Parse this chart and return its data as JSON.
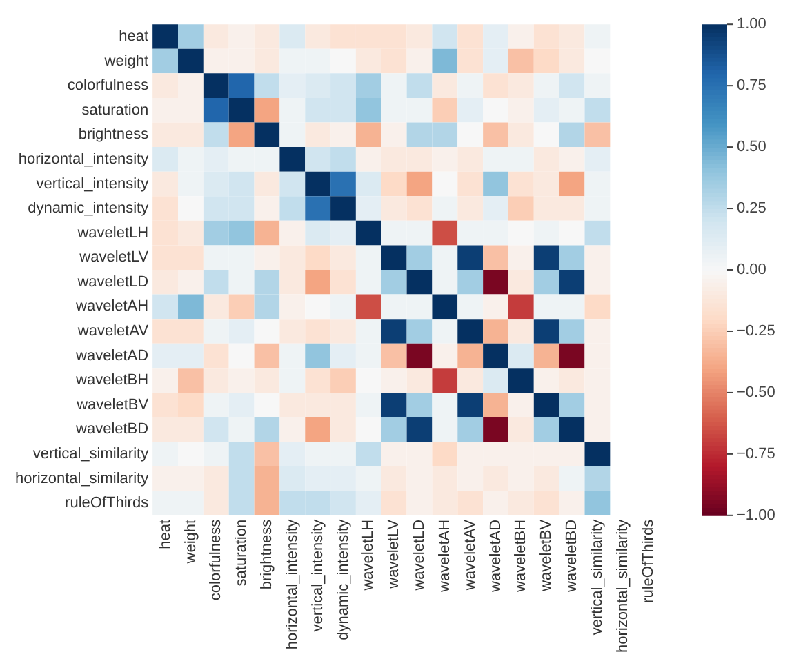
{
  "chart_data": {
    "type": "heatmap",
    "categories": [
      "heat",
      "weight",
      "colorfulness",
      "saturation",
      "brightness",
      "horizontal_intensity",
      "vertical_intensity",
      "dynamic_intensity",
      "waveletLH",
      "waveletLV",
      "waveletLD",
      "waveletAH",
      "waveletAV",
      "waveletAD",
      "waveletBH",
      "waveletBV",
      "waveletBD",
      "vertical_similarity",
      "horizontal_similarity",
      "ruleOfThirds"
    ],
    "y_categories": [
      "heat",
      "weight",
      "colorfulness",
      "saturation",
      "brightness",
      "horizontal_intensity",
      "vertical_intensity",
      "dynamic_intensity",
      "waveletLH",
      "waveletLV",
      "waveletLD",
      "waveletAH",
      "waveletAV",
      "waveletAD",
      "waveletBH",
      "waveletBV",
      "waveletBD",
      "vertical_similarity",
      "horizontal_similarity",
      "ruleOfThirds"
    ],
    "cells": [
      [
        1,
        0.35,
        -0.1,
        -0.05,
        -0.1,
        0.15,
        -0.1,
        -0.15,
        -0.15,
        -0.15,
        -0.1,
        0.2,
        -0.15,
        0.1,
        -0.05,
        -0.15,
        -0.1,
        0.05,
        null,
        null
      ],
      [
        0.35,
        1,
        -0.05,
        -0.05,
        -0.1,
        0.05,
        0.05,
        0,
        -0.1,
        -0.15,
        -0.05,
        0.45,
        -0.15,
        0.1,
        -0.3,
        -0.2,
        -0.1,
        0,
        null,
        null
      ],
      [
        -0.1,
        -0.05,
        1,
        0.8,
        0.25,
        0.1,
        0.15,
        0.2,
        0.35,
        0.05,
        0.25,
        -0.1,
        0.05,
        -0.15,
        -0.1,
        0.05,
        0.2,
        0.05,
        null,
        null
      ],
      [
        -0.05,
        -0.05,
        0.8,
        1,
        -0.4,
        0.05,
        0.2,
        0.2,
        0.4,
        0.05,
        0.05,
        -0.25,
        0.1,
        0,
        -0.05,
        0.1,
        0.05,
        0.25,
        null,
        null
      ],
      [
        -0.1,
        -0.1,
        0.25,
        -0.4,
        1,
        0.05,
        -0.1,
        -0.05,
        -0.35,
        -0.05,
        0.3,
        0.3,
        0,
        -0.3,
        -0.1,
        0,
        0.3,
        -0.3,
        null,
        null
      ],
      [
        0.15,
        0.05,
        0.1,
        0.05,
        0.05,
        1,
        0.2,
        0.25,
        -0.05,
        -0.1,
        -0.1,
        -0.05,
        -0.1,
        0.05,
        0.05,
        -0.1,
        -0.05,
        0.1,
        null,
        null
      ],
      [
        -0.1,
        0.05,
        0.15,
        0.2,
        -0.1,
        0.2,
        1,
        0.75,
        0.15,
        -0.2,
        -0.4,
        0,
        -0.15,
        0.4,
        -0.15,
        -0.1,
        -0.4,
        0.05,
        null,
        null
      ],
      [
        -0.15,
        0,
        0.2,
        0.2,
        -0.05,
        0.25,
        0.75,
        1,
        0.1,
        -0.1,
        -0.15,
        0.05,
        -0.1,
        0.1,
        -0.25,
        -0.1,
        -0.1,
        0.05,
        null,
        null
      ],
      [
        -0.15,
        -0.1,
        0.35,
        0.4,
        -0.35,
        -0.05,
        0.15,
        0.1,
        1,
        0.05,
        0.05,
        -0.65,
        0.05,
        0.05,
        0,
        0.05,
        0,
        0.25,
        null,
        null
      ],
      [
        -0.15,
        -0.15,
        0.05,
        0.05,
        -0.05,
        -0.1,
        -0.2,
        -0.1,
        0.05,
        1,
        0.35,
        0.05,
        0.95,
        -0.3,
        -0.05,
        0.95,
        0.35,
        -0.05,
        null,
        null
      ],
      [
        -0.1,
        -0.05,
        0.25,
        0.05,
        0.3,
        -0.1,
        -0.4,
        -0.15,
        0.05,
        0.35,
        1,
        0.05,
        0.35,
        -0.95,
        -0.1,
        0.35,
        0.95,
        -0.05,
        null,
        null
      ],
      [
        0.2,
        0.45,
        -0.1,
        -0.25,
        0.3,
        -0.05,
        0,
        0.05,
        -0.65,
        0.05,
        0.05,
        1,
        0.05,
        -0.05,
        -0.7,
        0.05,
        0.05,
        -0.2,
        null,
        null
      ],
      [
        -0.15,
        -0.15,
        0.05,
        0.1,
        0,
        -0.1,
        -0.15,
        -0.1,
        0.05,
        0.95,
        0.35,
        0.05,
        1,
        -0.35,
        -0.1,
        0.95,
        0.35,
        -0.05,
        null,
        null
      ],
      [
        0.1,
        0.1,
        -0.15,
        0,
        -0.3,
        0.05,
        0.4,
        0.1,
        0.05,
        -0.3,
        -0.95,
        -0.05,
        -0.35,
        1,
        0.15,
        -0.35,
        -0.95,
        -0.05,
        null,
        null
      ],
      [
        -0.05,
        -0.3,
        -0.1,
        -0.05,
        -0.1,
        0.05,
        -0.15,
        -0.25,
        0,
        -0.05,
        -0.1,
        -0.7,
        -0.1,
        0.15,
        1,
        -0.05,
        -0.1,
        -0.05,
        null,
        null
      ],
      [
        -0.15,
        -0.2,
        0.05,
        0.1,
        0,
        -0.1,
        -0.1,
        -0.1,
        0.05,
        0.95,
        0.35,
        0.05,
        0.95,
        -0.35,
        -0.05,
        1,
        0.35,
        -0.05,
        null,
        null
      ],
      [
        -0.1,
        -0.1,
        0.2,
        0.05,
        0.3,
        -0.05,
        -0.4,
        -0.1,
        0,
        0.35,
        0.95,
        0.05,
        0.35,
        -0.95,
        -0.1,
        0.35,
        1,
        -0.05,
        null,
        null
      ],
      [
        0.05,
        0,
        0.05,
        0.25,
        -0.3,
        0.1,
        0.05,
        0.05,
        0.25,
        -0.05,
        -0.05,
        -0.2,
        -0.05,
        -0.05,
        -0.05,
        -0.05,
        -0.05,
        1,
        null,
        null
      ],
      [
        -0.05,
        -0.05,
        -0.1,
        0.25,
        -0.35,
        0.15,
        0.1,
        0.1,
        0.05,
        -0.1,
        -0.05,
        -0.1,
        -0.05,
        -0.1,
        -0.05,
        -0.1,
        0.05,
        0.3,
        null,
        null
      ],
      [
        0.05,
        0.05,
        -0.1,
        0.25,
        -0.35,
        0.25,
        0.25,
        0.2,
        0.1,
        -0.15,
        -0.05,
        -0.1,
        -0.15,
        -0.05,
        -0.1,
        -0.15,
        -0.05,
        0.4,
        null,
        null
      ]
    ],
    "clim": [
      -1,
      1
    ],
    "cticks": [
      {
        "value": -1,
        "label": "−1.00"
      },
      {
        "value": -0.75,
        "label": "−0.75"
      },
      {
        "value": -0.5,
        "label": "−0.50"
      },
      {
        "value": -0.25,
        "label": "−0.25"
      },
      {
        "value": 0,
        "label": "0.00"
      },
      {
        "value": 0.25,
        "label": "0.25"
      },
      {
        "value": 0.5,
        "label": "0.50"
      },
      {
        "value": 0.75,
        "label": "0.75"
      },
      {
        "value": 1,
        "label": "1.00"
      }
    ]
  }
}
